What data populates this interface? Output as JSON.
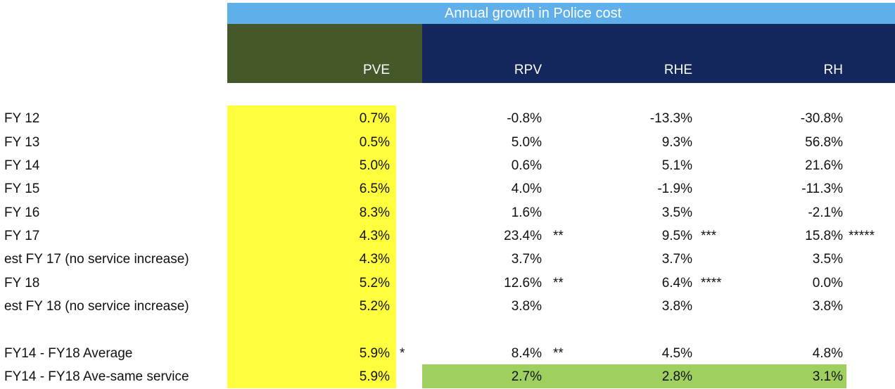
{
  "title": "Annual growth in Police cost",
  "columns": {
    "pve": "PVE",
    "rpv": "RPV",
    "rhe": "RHE",
    "rh": "RH"
  },
  "rows": [
    {
      "label": "FY 12",
      "pve": "0.7%",
      "pve_note": "",
      "rpv": "-0.8%",
      "rpv_note": "",
      "rhe": "-13.3%",
      "rhe_note": "",
      "rh": "-30.8%",
      "rh_note": ""
    },
    {
      "label": "FY 13",
      "pve": "0.5%",
      "pve_note": "",
      "rpv": "5.0%",
      "rpv_note": "",
      "rhe": "9.3%",
      "rhe_note": "",
      "rh": "56.8%",
      "rh_note": ""
    },
    {
      "label": "FY 14",
      "pve": "5.0%",
      "pve_note": "",
      "rpv": "0.6%",
      "rpv_note": "",
      "rhe": "5.1%",
      "rhe_note": "",
      "rh": "21.6%",
      "rh_note": ""
    },
    {
      "label": "FY 15",
      "pve": "6.5%",
      "pve_note": "",
      "rpv": "4.0%",
      "rpv_note": "",
      "rhe": "-1.9%",
      "rhe_note": "",
      "rh": "-11.3%",
      "rh_note": ""
    },
    {
      "label": "FY 16",
      "pve": "8.3%",
      "pve_note": "",
      "rpv": "1.6%",
      "rpv_note": "",
      "rhe": "3.5%",
      "rhe_note": "",
      "rh": "-2.1%",
      "rh_note": ""
    },
    {
      "label": "FY 17",
      "pve": "4.3%",
      "pve_note": "",
      "rpv": "23.4%",
      "rpv_note": "**",
      "rhe": "9.5%",
      "rhe_note": "***",
      "rh": "15.8%",
      "rh_note": "*****"
    },
    {
      "label": "est FY 17 (no service increase)",
      "pve": "4.3%",
      "pve_note": "",
      "rpv": "3.7%",
      "rpv_note": "",
      "rhe": "3.7%",
      "rhe_note": "",
      "rh": "3.5%",
      "rh_note": ""
    },
    {
      "label": "FY 18",
      "pve": "5.2%",
      "pve_note": "",
      "rpv": "12.6%",
      "rpv_note": "**",
      "rhe": "6.4%",
      "rhe_note": "****",
      "rh": "0.0%",
      "rh_note": ""
    },
    {
      "label": "est FY 18 (no service increase)",
      "pve": "5.2%",
      "pve_note": "",
      "rpv": "3.8%",
      "rpv_note": "",
      "rhe": "3.8%",
      "rhe_note": "",
      "rh": "3.8%",
      "rh_note": ""
    },
    {
      "label": "FY14 - FY18 Average",
      "pve": "5.9%",
      "pve_note": "*",
      "rpv": "8.4%",
      "rpv_note": "**",
      "rhe": "4.5%",
      "rhe_note": "",
      "rh": "4.8%",
      "rh_note": ""
    },
    {
      "label": "FY14 - FY18 Ave-same service",
      "pve": "5.9%",
      "pve_note": "",
      "rpv": "2.7%",
      "rpv_note": "",
      "rhe": "2.8%",
      "rhe_note": "",
      "rh": "3.1%",
      "rh_note": ""
    }
  ],
  "colors": {
    "title_bar": "#5fb0ea",
    "pve_header": "#44582a",
    "other_header": "#13275d",
    "pve_highlight": "#fffe3c",
    "same_service_highlight": "#9fcf5f"
  }
}
